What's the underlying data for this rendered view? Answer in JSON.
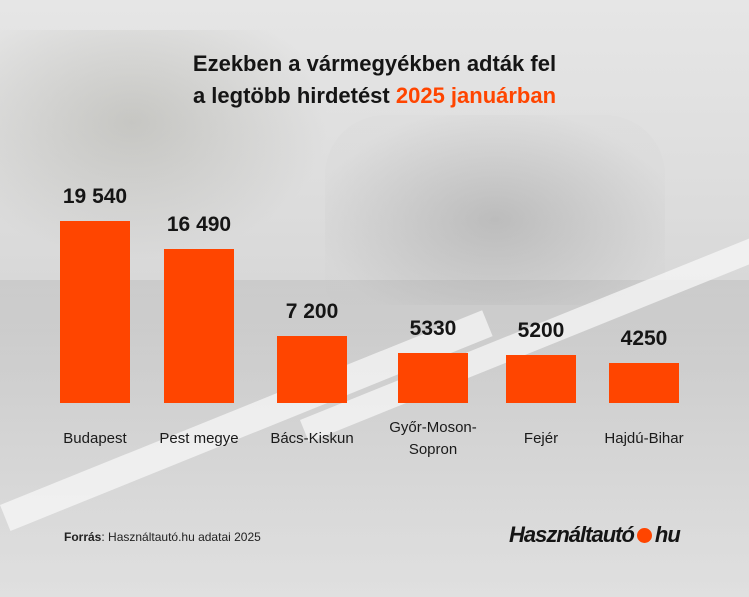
{
  "title": {
    "line1": "Ezekben a vármegyékben adták fel",
    "line2_prefix": "a legtöbb hirdetést",
    "line2_accent": "2025 januárban"
  },
  "colors": {
    "bar": "#ff4500",
    "accent": "#ff4500",
    "text": "#151515"
  },
  "chart_data": {
    "type": "bar",
    "categories": [
      "Budapest",
      "Pest megye",
      "Bács-Kiskun",
      "Győr-Moson-Sopron",
      "Fejér",
      "Hajdú-Bihar"
    ],
    "category_lines": [
      [
        "Budapest"
      ],
      [
        "Pest megye"
      ],
      [
        "Bács-Kiskun"
      ],
      [
        "Győr-Moson-",
        "Sopron"
      ],
      [
        "Fejér"
      ],
      [
        "Hajdú-Bihar"
      ]
    ],
    "values": [
      19540,
      16490,
      7200,
      5330,
      5200,
      4250
    ],
    "value_labels": [
      "19 540",
      "16 490",
      "7 200",
      "5330",
      "5200",
      "4250"
    ],
    "grid": false,
    "legend": "none"
  },
  "footer": {
    "source_label": "Forrás",
    "source_text": ": Használtautó.hu adatai 2025"
  },
  "logo": {
    "text_left": "Használtautó",
    "text_right": "hu"
  }
}
